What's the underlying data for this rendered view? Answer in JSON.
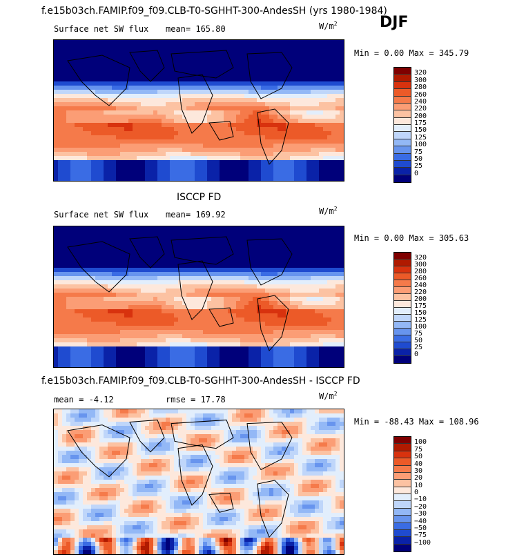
{
  "header": {
    "title": "f.e15b03ch.FAMIP.f09_f09.CLB-T0-SGHHT-300-AndesSH (yrs 1980-1984)",
    "season": "DJF"
  },
  "chart_data": [
    {
      "type": "heatmap",
      "title": "",
      "subtitle": "Surface net SW flux",
      "stat1": "mean= 165.80",
      "stat2": "",
      "units": "W/m",
      "units_exp": "2",
      "minmax": "Min =    0.00 Max = 345.79",
      "colorbar": {
        "labels": [
          "320",
          "300",
          "280",
          "260",
          "240",
          "220",
          "200",
          "175",
          "150",
          "125",
          "100",
          "75",
          "50",
          "25",
          "0"
        ],
        "colors": [
          "#7f0000",
          "#b01a00",
          "#d8320e",
          "#ec5a28",
          "#f57a4a",
          "#fb9d75",
          "#fcc2a2",
          "#fde8dc",
          "#e2eefc",
          "#bfd6fa",
          "#93b8f6",
          "#6794ee",
          "#3a6ce4",
          "#1f4bd0",
          "#0a22a8",
          "#00007a"
        ]
      }
    },
    {
      "type": "heatmap",
      "title": "ISCCP FD",
      "subtitle": "Surface net SW flux",
      "stat1": "mean= 169.92",
      "stat2": "",
      "units": "W/m",
      "units_exp": "2",
      "minmax": "Min =    0.00 Max = 305.63",
      "colorbar": {
        "labels": [
          "320",
          "300",
          "280",
          "260",
          "240",
          "220",
          "200",
          "175",
          "150",
          "125",
          "100",
          "75",
          "50",
          "25",
          "0"
        ],
        "colors": [
          "#7f0000",
          "#b01a00",
          "#d8320e",
          "#ec5a28",
          "#f57a4a",
          "#fb9d75",
          "#fcc2a2",
          "#fde8dc",
          "#e2eefc",
          "#bfd6fa",
          "#93b8f6",
          "#6794ee",
          "#3a6ce4",
          "#1f4bd0",
          "#0a22a8",
          "#00007a"
        ]
      }
    },
    {
      "type": "heatmap",
      "title": "f.e15b03ch.FAMIP.f09_f09.CLB-T0-SGHHT-300-AndesSH - ISCCP FD",
      "subtitle": "",
      "stat1": "mean =   -4.12",
      "stat2": "rmse =   17.78",
      "units": "W/m",
      "units_exp": "2",
      "minmax": "Min = -88.43 Max = 108.96",
      "colorbar": {
        "labels": [
          "100",
          "75",
          "50",
          "40",
          "30",
          "20",
          "10",
          "0",
          "−10",
          "−20",
          "−30",
          "−40",
          "−50",
          "−75",
          "−100"
        ],
        "colors": [
          "#7f0000",
          "#b01a00",
          "#d8320e",
          "#ec5a28",
          "#f57a4a",
          "#fb9d75",
          "#fcc2a2",
          "#fde8dc",
          "#e2eefc",
          "#bfd6fa",
          "#93b8f6",
          "#6794ee",
          "#3a6ce4",
          "#1f4bd0",
          "#0a22a8",
          "#00007a"
        ]
      }
    }
  ]
}
